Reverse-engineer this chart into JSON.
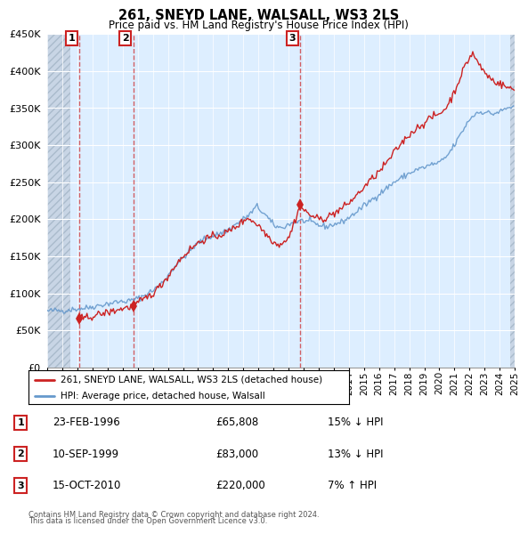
{
  "title": "261, SNEYD LANE, WALSALL, WS3 2LS",
  "subtitle": "Price paid vs. HM Land Registry's House Price Index (HPI)",
  "hpi_label": "HPI: Average price, detached house, Walsall",
  "property_label": "261, SNEYD LANE, WALSALL, WS3 2LS (detached house)",
  "footnote1": "Contains HM Land Registry data © Crown copyright and database right 2024.",
  "footnote2": "This data is licensed under the Open Government Licence v3.0.",
  "sales": [
    {
      "num": 1,
      "date": "23-FEB-1996",
      "price": 65808,
      "year": 1996.13,
      "pct": "15%",
      "dir": "↓"
    },
    {
      "num": 2,
      "date": "10-SEP-1999",
      "price": 83000,
      "year": 1999.69,
      "pct": "13%",
      "dir": "↓"
    },
    {
      "num": 3,
      "date": "15-OCT-2010",
      "price": 220000,
      "year": 2010.79,
      "pct": "7%",
      "dir": "↑"
    }
  ],
  "ylim": [
    0,
    450000
  ],
  "yticks": [
    0,
    50000,
    100000,
    150000,
    200000,
    250000,
    300000,
    350000,
    400000,
    450000
  ],
  "xlim_start": 1994.0,
  "xlim_end": 2025.0,
  "hpi_color": "#6699cc",
  "price_color": "#cc2222",
  "bg_plot": "#ddeeff",
  "hatch_end": 1995.5,
  "hatch_start": 1994.0
}
